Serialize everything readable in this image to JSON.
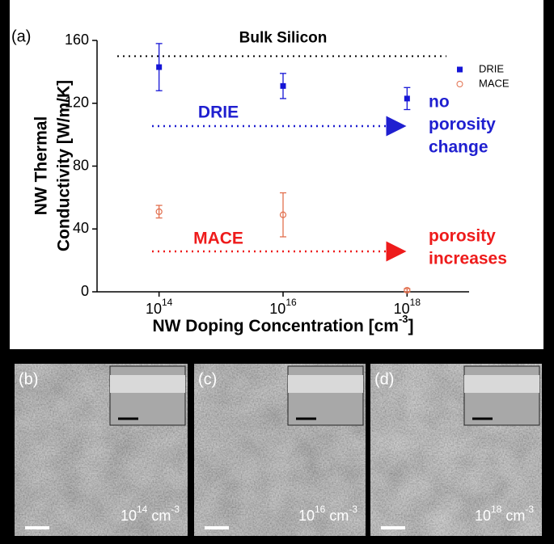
{
  "chart_data": {
    "type": "scatter",
    "panel_label": "(a)",
    "y_label": [
      "NW Thermal",
      "Conductivity [W/m/K]"
    ],
    "x_label": {
      "text": "NW Doping Concentration [cm",
      "sup": "-3",
      "end": "]"
    },
    "x_log": true,
    "xlim": [
      10000000000000.0,
      1e+19
    ],
    "xticks": [
      {
        "value": 100000000000000.0,
        "label": "10",
        "power": "14"
      },
      {
        "value": 1e+16,
        "label": "10",
        "power": "16"
      },
      {
        "value": 1e+18,
        "label": "10",
        "power": "18"
      }
    ],
    "ylim": [
      0,
      160
    ],
    "yticks": [
      0,
      40,
      80,
      120,
      160
    ],
    "reference_line": {
      "value": 150,
      "label": "Bulk Silicon"
    },
    "x": [
      100000000000000.0,
      1e+16,
      1e+18
    ],
    "series": [
      {
        "name": "DRIE",
        "color": "#1515d6",
        "marker": "square",
        "values": [
          143,
          131,
          123
        ],
        "errors": [
          15,
          8,
          7
        ]
      },
      {
        "name": "MACE",
        "color": "#e2704f",
        "marker": "circle",
        "values": [
          51,
          49,
          1
        ],
        "errors": [
          4,
          14,
          1
        ]
      }
    ],
    "annotations": [
      {
        "arrow_label": "DRIE",
        "text": [
          "no",
          "porosity",
          "change"
        ],
        "color": "#1f1fd0"
      },
      {
        "arrow_label": "MACE",
        "text": [
          "porosity",
          "increases"
        ],
        "color": "#ee1b1b"
      }
    ]
  },
  "panels": [
    {
      "label": "(b)",
      "base": "10",
      "power": "14",
      "unit": " cm",
      "unit_power": "-3"
    },
    {
      "label": "(c)",
      "base": "10",
      "power": "16",
      "unit": " cm",
      "unit_power": "-3"
    },
    {
      "label": "(d)",
      "base": "10",
      "power": "18",
      "unit": " cm",
      "unit_power": "-3"
    }
  ]
}
